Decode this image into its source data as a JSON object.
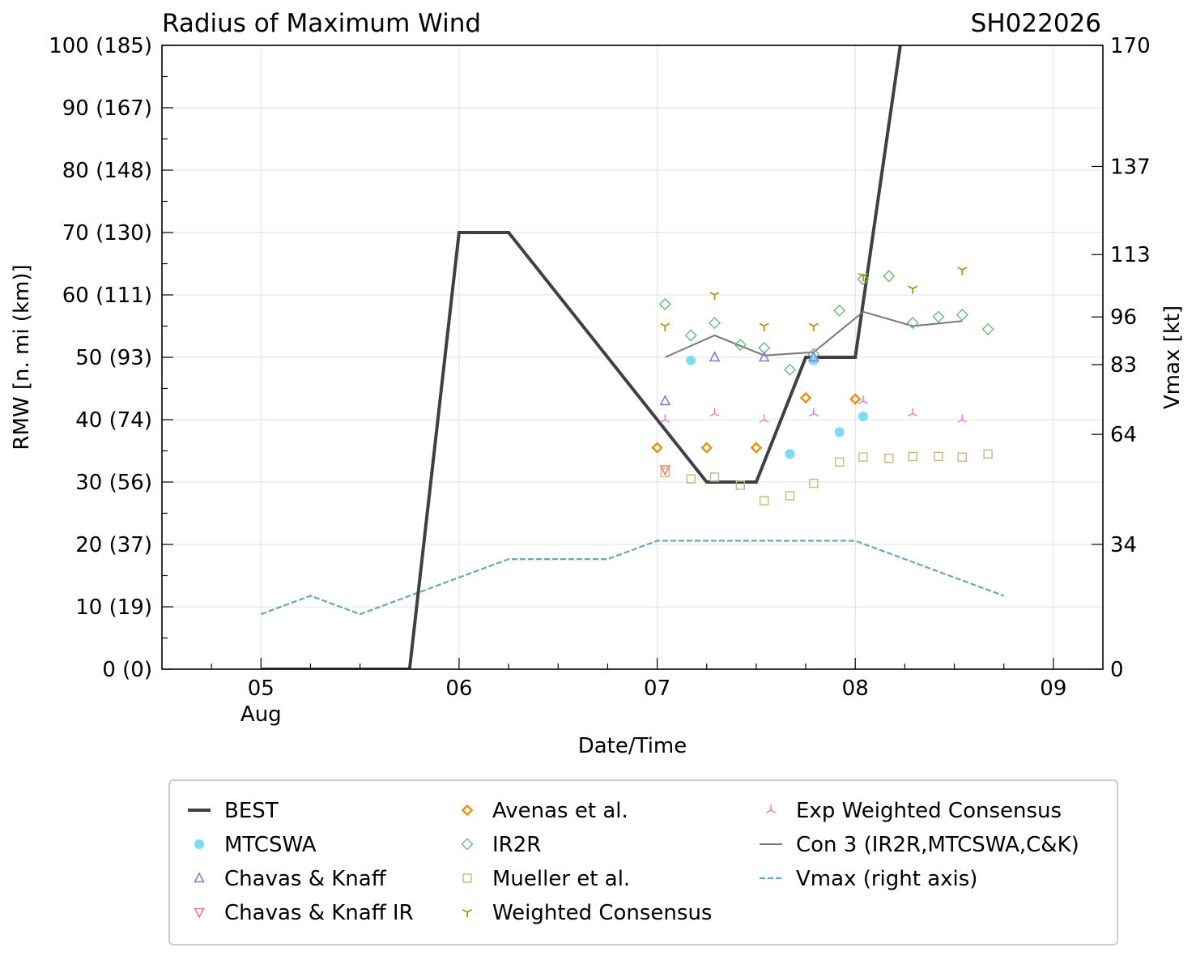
{
  "chart_data": {
    "type": "scatter",
    "title": "Radius of Maximum Wind",
    "storm_id": "SH022026",
    "xlabel": "Date/Time",
    "ylabel": "RMW [n. mi (km)]",
    "y2label": "Vmax [kt]",
    "xlim": [
      4.5,
      9.25
    ],
    "ylim": [
      0,
      100
    ],
    "y2lim": [
      0,
      170
    ],
    "x_ticks": [
      {
        "x": 5,
        "label": "05",
        "sub": "Aug"
      },
      {
        "x": 6,
        "label": "06",
        "sub": ""
      },
      {
        "x": 7,
        "label": "07",
        "sub": ""
      },
      {
        "x": 8,
        "label": "08",
        "sub": ""
      },
      {
        "x": 9,
        "label": "09",
        "sub": ""
      }
    ],
    "y_ticks": [
      {
        "v": 0,
        "label": "0 (0)"
      },
      {
        "v": 10,
        "label": "10 (19)"
      },
      {
        "v": 20,
        "label": "20 (37)"
      },
      {
        "v": 30,
        "label": "30 (56)"
      },
      {
        "v": 40,
        "label": "40 (74)"
      },
      {
        "v": 50,
        "label": "50 (93)"
      },
      {
        "v": 60,
        "label": "60 (111)"
      },
      {
        "v": 70,
        "label": "70 (130)"
      },
      {
        "v": 80,
        "label": "80 (148)"
      },
      {
        "v": 90,
        "label": "90 (167)"
      },
      {
        "v": 100,
        "label": "100 (185)"
      }
    ],
    "y2_ticks": [
      {
        "v": 0,
        "label": "0"
      },
      {
        "v": 34,
        "label": "34"
      },
      {
        "v": 64,
        "label": "64"
      },
      {
        "v": 83,
        "label": "83"
      },
      {
        "v": 96,
        "label": "96"
      },
      {
        "v": 113,
        "label": "113"
      },
      {
        "v": 137,
        "label": "137"
      },
      {
        "v": 170,
        "label": "170"
      }
    ],
    "series": [
      {
        "name": "BEST",
        "label": "BEST",
        "kind": "line",
        "color": "#404040",
        "x": [
          5.0,
          5.75,
          6.0,
          6.25,
          7.0,
          7.25,
          7.5,
          7.75,
          8.0,
          8.25
        ],
        "y": [
          0,
          0,
          70,
          70,
          40,
          30,
          30,
          50,
          50,
          105
        ]
      },
      {
        "name": "MTCSWA",
        "label": "MTCSWA",
        "kind": "marker",
        "marker": "circle",
        "color": "#7fd9f7",
        "x": [
          7.17,
          7.67,
          7.79,
          7.92,
          8.04
        ],
        "y": [
          49.5,
          34.5,
          49.5,
          38,
          40.5
        ]
      },
      {
        "name": "Chavas & Knaff",
        "label": "Chavas & Knaff",
        "kind": "marker",
        "marker": "triangle-up",
        "color": "#8877dd",
        "x": [
          7.04,
          7.29,
          7.54,
          7.79
        ],
        "y": [
          43,
          50,
          50,
          50
        ]
      },
      {
        "name": "Chavas & Knaff IR",
        "label": "Chavas & Knaff IR",
        "kind": "marker",
        "marker": "triangle-down",
        "color": "#e88080",
        "x": [
          7.04
        ],
        "y": [
          32
        ]
      },
      {
        "name": "Avenas et al.",
        "label": "Avenas et al.",
        "kind": "marker",
        "marker": "diamond",
        "color": "#e69420",
        "x": [
          7.0,
          7.25,
          7.5,
          7.75,
          8.0
        ],
        "y": [
          35.5,
          35.5,
          35.5,
          43.5,
          43.3
        ]
      },
      {
        "name": "IR2R",
        "label": "IR2R",
        "kind": "marker",
        "marker": "diamond-open",
        "color": "#66bb77",
        "x": [
          7.04,
          7.17,
          7.29,
          7.42,
          7.54,
          7.67,
          7.79,
          7.92,
          8.04,
          8.17,
          8.29,
          8.42,
          8.54,
          8.67
        ],
        "y": [
          58.5,
          53.5,
          55.5,
          52,
          51.5,
          48,
          50.5,
          57.5,
          62.5,
          63,
          55.5,
          56.5,
          56.8,
          54.5
        ]
      },
      {
        "name": "Mueller et al.",
        "label": "Mueller et al.",
        "kind": "marker",
        "marker": "square-open",
        "color": "#c8b87a",
        "x": [
          7.04,
          7.17,
          7.29,
          7.42,
          7.54,
          7.67,
          7.79,
          7.92,
          8.04,
          8.17,
          8.29,
          8.42,
          8.54,
          8.67
        ],
        "y": [
          31.5,
          30.5,
          30.8,
          29.5,
          27,
          27.8,
          29.8,
          33.2,
          34,
          33.8,
          34.1,
          34.1,
          34,
          34.5
        ]
      },
      {
        "name": "Weighted Consensus",
        "label": "Weighted Consensus",
        "kind": "marker",
        "marker": "tri-down",
        "color": "#b8921a",
        "x": [
          7.04,
          7.29,
          7.54,
          7.79,
          8.04,
          8.29,
          8.54
        ],
        "y": [
          55,
          60,
          55,
          55,
          63,
          61,
          64
        ]
      },
      {
        "name": "Exp Weighted Consensus",
        "label": "Exp Weighted Consensus",
        "kind": "marker",
        "marker": "tri-up",
        "color": "#dd77dd",
        "x": [
          7.04,
          7.29,
          7.54,
          7.79,
          8.04,
          8.29,
          8.54
        ],
        "y": [
          40,
          41,
          40,
          41,
          43,
          41,
          40
        ]
      },
      {
        "name": "Con 3 (IR2R,MTCSWA,C&K)",
        "label": "Con 3 (IR2R,MTCSWA,C&K)",
        "kind": "line",
        "color": "#777777",
        "x": [
          7.04,
          7.29,
          7.54,
          7.79,
          8.04,
          8.29,
          8.54
        ],
        "y": [
          50,
          53.5,
          50.3,
          50.8,
          57.3,
          55,
          55.8
        ]
      },
      {
        "name": "Vmax (right axis)",
        "label": "Vmax (right axis)",
        "kind": "dashed-line",
        "axis": "right",
        "color": "#66a9b5",
        "x": [
          5.0,
          5.25,
          5.5,
          6.0,
          6.25,
          6.75,
          7.0,
          7.25,
          7.5,
          7.75,
          8.0,
          8.25,
          8.5,
          8.75
        ],
        "y": [
          15,
          20,
          15,
          25,
          30,
          30,
          35,
          35,
          35,
          35,
          35,
          30,
          25,
          20
        ]
      }
    ],
    "legend_position": "bottom"
  }
}
